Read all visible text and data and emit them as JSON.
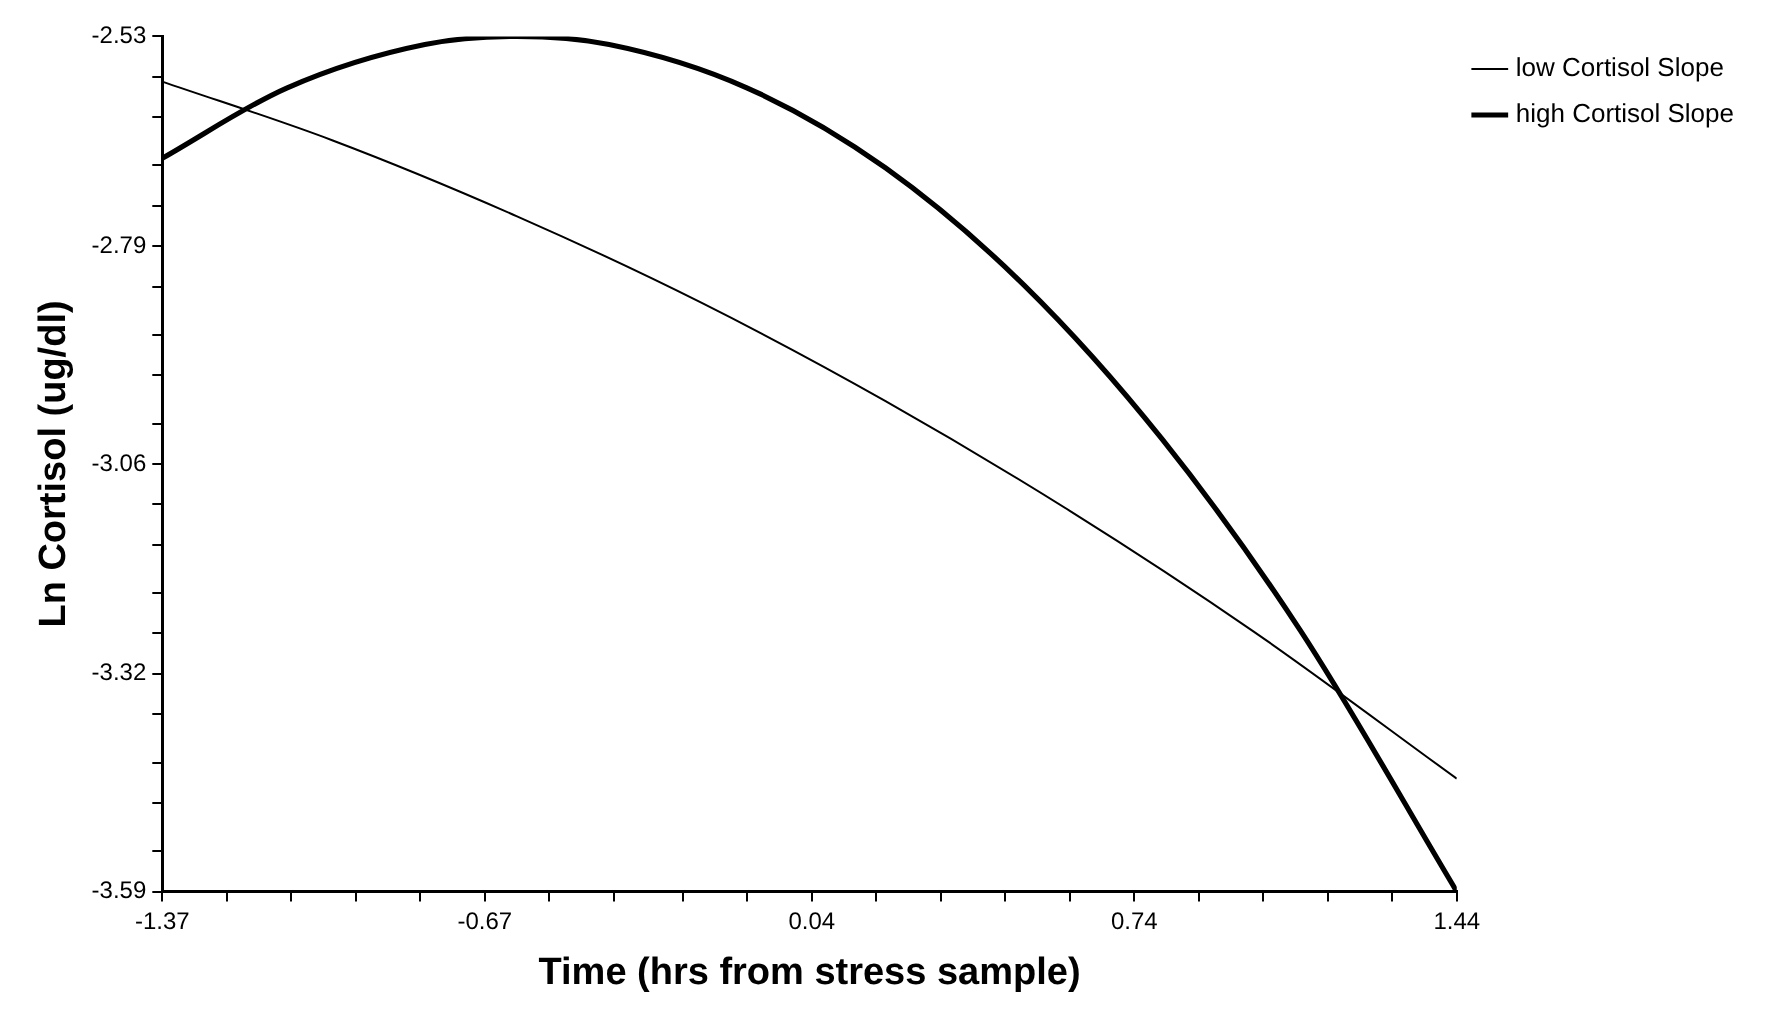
{
  "chart_data": {
    "type": "line",
    "xlabel": "Time (hrs from stress sample)",
    "ylabel": "Ln Cortisol (ug/dl)",
    "xlim": [
      -1.37,
      1.44
    ],
    "ylim": [
      -3.59,
      -2.53
    ],
    "xticks": [
      -1.37,
      {
        "value": -1.23,
        "label": null
      },
      {
        "value": -1.09,
        "label": null
      },
      {
        "value": -0.95,
        "label": null
      },
      {
        "value": -0.81,
        "label": null
      },
      -0.67,
      {
        "value": -0.53,
        "label": null
      },
      {
        "value": -0.39,
        "label": null
      },
      {
        "value": -0.24,
        "label": null
      },
      {
        "value": -0.1,
        "label": null
      },
      0.04,
      {
        "value": 0.18,
        "label": null
      },
      {
        "value": 0.32,
        "label": null
      },
      {
        "value": 0.46,
        "label": null
      },
      {
        "value": 0.6,
        "label": null
      },
      0.74,
      {
        "value": 0.88,
        "label": null
      },
      {
        "value": 1.02,
        "label": null
      },
      {
        "value": 1.16,
        "label": null
      },
      {
        "value": 1.3,
        "label": null
      },
      1.44
    ],
    "yticks": [
      -3.59,
      {
        "value": -3.54,
        "label": null
      },
      {
        "value": -3.48,
        "label": null
      },
      {
        "value": -3.43,
        "label": null
      },
      {
        "value": -3.37,
        "label": null
      },
      -3.32,
      {
        "value": -3.27,
        "label": null
      },
      {
        "value": -3.22,
        "label": null
      },
      {
        "value": -3.16,
        "label": null
      },
      {
        "value": -3.11,
        "label": null
      },
      -3.06,
      {
        "value": -3.01,
        "label": null
      },
      {
        "value": -2.95,
        "label": null
      },
      {
        "value": -2.9,
        "label": null
      },
      {
        "value": -2.84,
        "label": null
      },
      -2.79,
      {
        "value": -2.74,
        "label": null
      },
      {
        "value": -2.69,
        "label": null
      },
      {
        "value": -2.63,
        "label": null
      },
      {
        "value": -2.58,
        "label": null
      },
      -2.53
    ],
    "grid": false,
    "legend": "top right",
    "marker": "none",
    "line_style": "solid",
    "series": [
      {
        "name": "low Cortisol Slope",
        "color": "#000000",
        "x": [
          -1.37,
          -1,
          -0.6,
          -0.2,
          0.2,
          0.6,
          1,
          1.44
        ],
        "values": [
          -2.586,
          -2.659,
          -2.753,
          -2.86,
          -2.982,
          -3.118,
          -3.268,
          -3.45
        ]
      },
      {
        "name": "high Cortisol Slope",
        "color": "#000000",
        "x": [
          -1.37,
          -1.1,
          -0.8,
          -0.6,
          -0.4,
          -0.1,
          0.2,
          0.5,
          0.8,
          1.1,
          1.44
        ],
        "values": [
          -2.681,
          -2.594,
          -2.54,
          -2.53,
          -2.54,
          -2.594,
          -2.693,
          -2.838,
          -3.029,
          -3.266,
          -3.59
        ]
      }
    ]
  }
}
